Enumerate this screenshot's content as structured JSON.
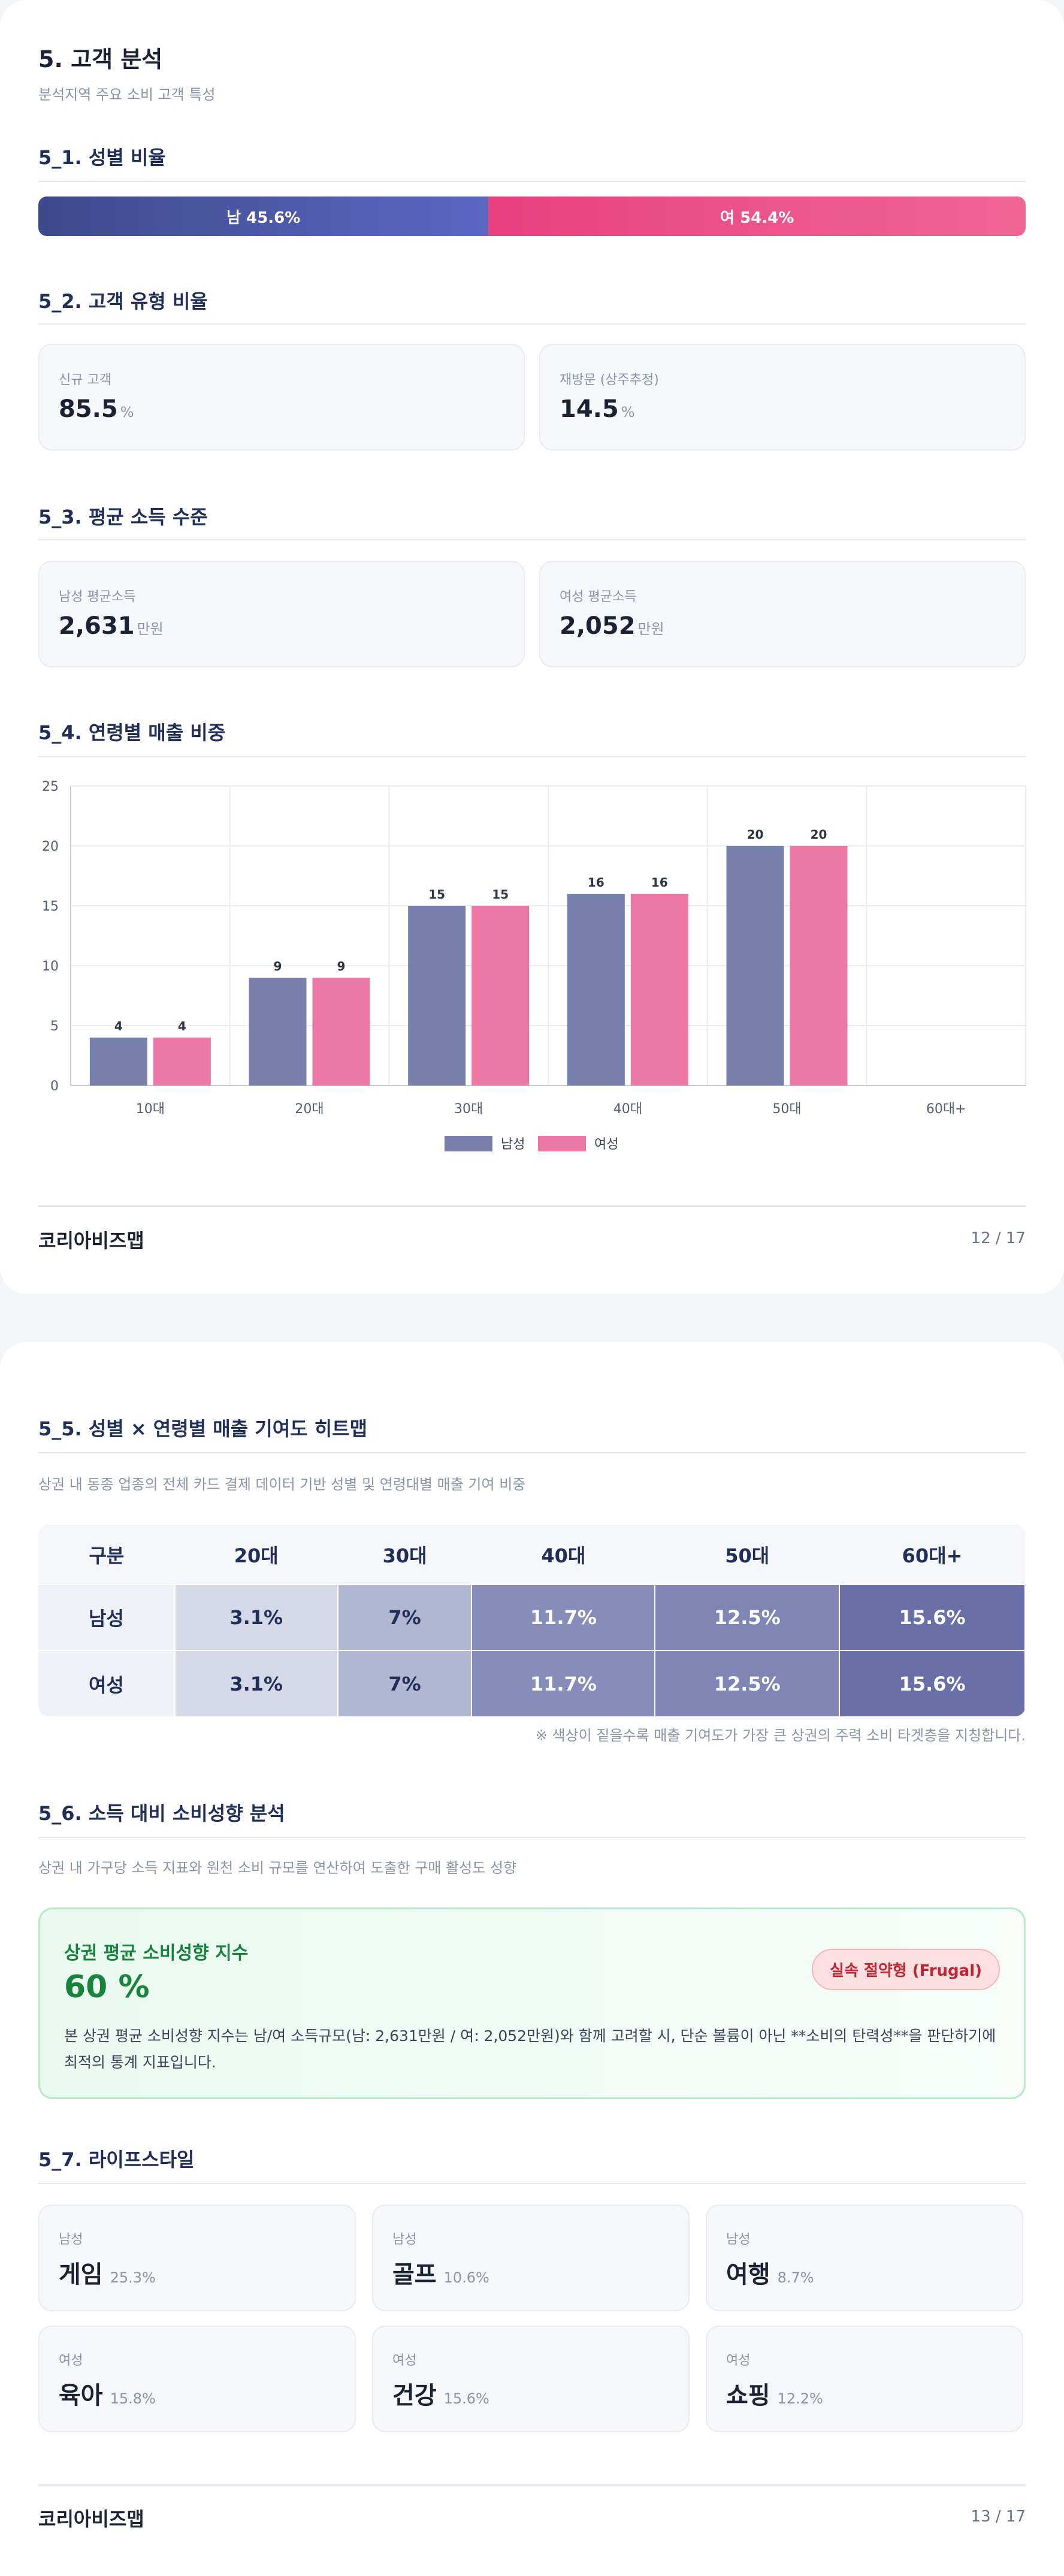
{
  "page1": {
    "title": "5. 고객 분석",
    "subtitle": "분석지역 주요 소비 고객 특성",
    "s1_title": "5_1. 성별 비율",
    "gender": {
      "male_label": "남 45.6%",
      "male_pct": 45.6,
      "female_label": "여 54.4%",
      "female_pct": 54.4
    },
    "s2_title": "5_2. 고객 유형 비율",
    "customer_types": [
      {
        "label": "신규 고객",
        "value": "85.5",
        "unit": "%"
      },
      {
        "label": "재방문 (상주추정)",
        "value": "14.5",
        "unit": "%"
      }
    ],
    "s3_title": "5_3. 평균 소득 수준",
    "income": [
      {
        "label": "남성 평균소득",
        "value": "2,631",
        "unit": "만원"
      },
      {
        "label": "여성 평균소득",
        "value": "2,052",
        "unit": "만원"
      }
    ],
    "s4_title": "5_4. 연령별 매출 비중",
    "footer_brand": "코리아비즈맵",
    "footer_page": "12 / 17"
  },
  "chart_data": {
    "type": "bar",
    "categories": [
      "10대",
      "20대",
      "30대",
      "40대",
      "50대",
      "60대+"
    ],
    "series": [
      {
        "name": "남성",
        "values": [
          4,
          9,
          15,
          16,
          20,
          0
        ],
        "data_labels": [
          "4",
          "9",
          "15",
          "16",
          "20",
          ""
        ]
      },
      {
        "name": "여성",
        "values": [
          4,
          9,
          15,
          16,
          20,
          0
        ],
        "data_labels": [
          "4",
          "9",
          "15",
          "16",
          "20",
          ""
        ]
      }
    ],
    "ylim": [
      0,
      25
    ],
    "yticks": [
      0,
      5,
      10,
      15,
      20,
      25
    ],
    "grid": true,
    "legend_position": "bottom",
    "colors": [
      "#7780ad",
      "#ee78a5"
    ]
  },
  "page2": {
    "s5_title": "5_5. 성별 × 연령별 매출 기여도 히트맵",
    "s5_subtitle": "상권 내 동종 업종의 전체 카드 결제 데이터 기반 성별 및 연령대별 매출 기여 비중",
    "heatmap": {
      "header": [
        "구분",
        "20대",
        "30대",
        "40대",
        "50대",
        "60대+"
      ],
      "rows": [
        {
          "label": "남성",
          "cells": [
            "3.1%",
            "7%",
            "11.7%",
            "12.5%",
            "15.6%"
          ]
        },
        {
          "label": "여성",
          "cells": [
            "3.1%",
            "7%",
            "11.7%",
            "12.5%",
            "15.6%"
          ]
        }
      ],
      "cell_colors": [
        "#d5d8e7",
        "#b1b6d3",
        "#868dbb",
        "#7f86b6",
        "#6870a7"
      ],
      "cell_text_colors": [
        "#1f2f5a",
        "#1f2f5a",
        "#ffffff",
        "#ffffff",
        "#ffffff"
      ],
      "note": "※ 색상이 짙을수록 매출 기여도가 가장 큰 상권의 주력 소비 타겟층을 지칭합니다."
    },
    "s6_title": "5_6. 소득 대비 소비성향 분석",
    "s6_subtitle": "상권 내 가구당 소득 지표와 원천 소비 규모를 연산하여 도출한 구매 활성도 성향",
    "spend": {
      "title": "상권 평균 소비성향 지수",
      "value": "60 %",
      "badge": "실속 절약형 (Frugal)",
      "desc": "본 상권 평균 소비성향 지수는 남/여 소득규모(남: 2,631만원 / 여: 2,052만원)와 함께 고려할 시, 단순 볼륨이 아닌 **소비의 탄력성**을 판단하기에 최적의 통계 지표입니다."
    },
    "s7_title": "5_7. 라이프스타일",
    "lifestyle": [
      {
        "cat": "남성",
        "name": "게임",
        "pct": "25.3%"
      },
      {
        "cat": "남성",
        "name": "골프",
        "pct": "10.6%"
      },
      {
        "cat": "남성",
        "name": "여행",
        "pct": "8.7%"
      },
      {
        "cat": "여성",
        "name": "육아",
        "pct": "15.8%"
      },
      {
        "cat": "여성",
        "name": "건강",
        "pct": "15.6%"
      },
      {
        "cat": "여성",
        "name": "쇼핑",
        "pct": "12.2%"
      }
    ],
    "footer_brand": "코리아비즈맵",
    "footer_page": "13 / 17"
  }
}
